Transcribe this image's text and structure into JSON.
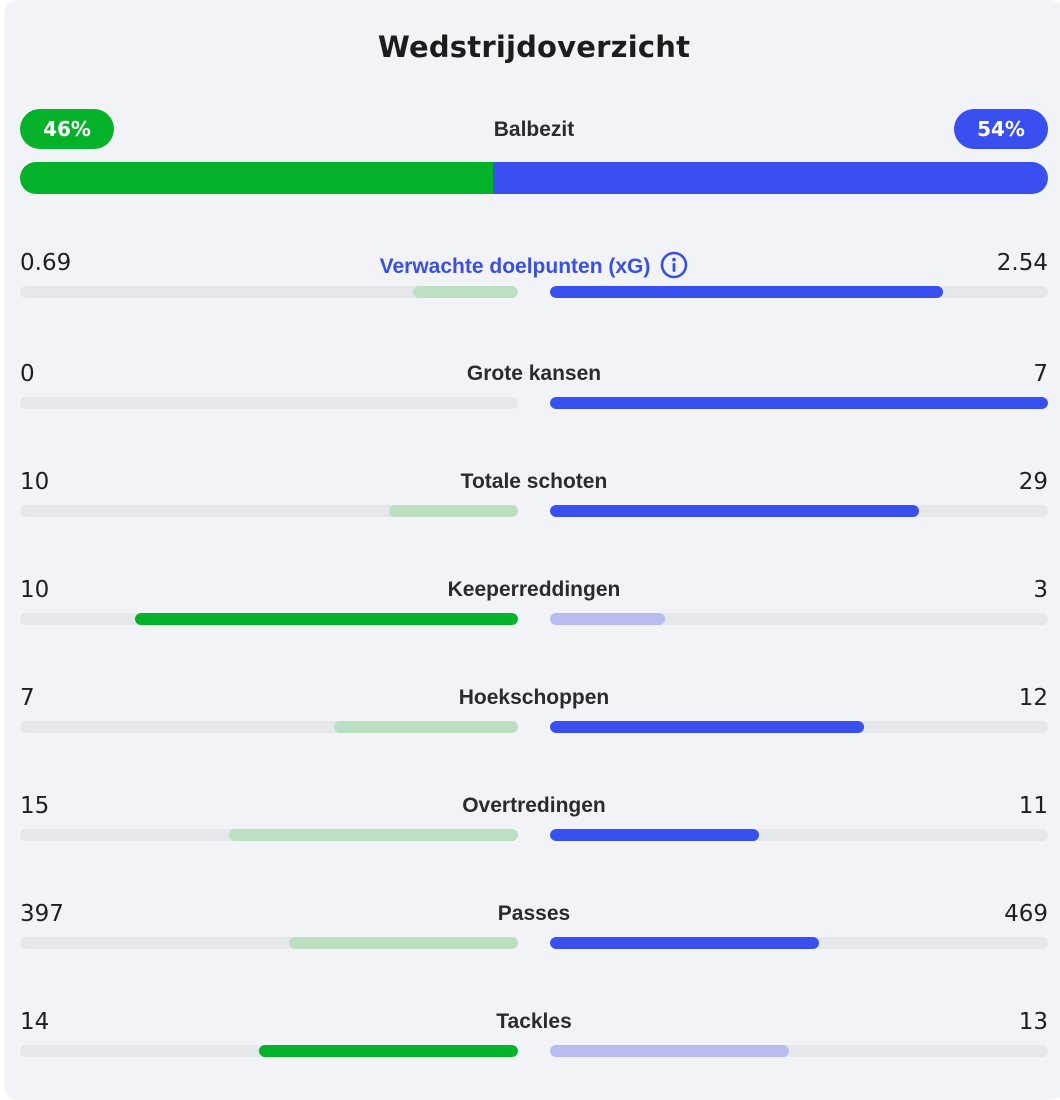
{
  "title": "Wedstrijdoverzicht",
  "colors": {
    "home": "#04b22a",
    "home_light": "#bcdfc4",
    "away": "#3a4ff0",
    "away_light": "#b8bff0",
    "track": "#e6e7ea"
  },
  "possession": {
    "label": "Balbezit",
    "home_label": "46%",
    "away_label": "54%",
    "home": 46,
    "away": 54
  },
  "stats": [
    {
      "label": "Verwachte doelpunten (xG)",
      "home": "0.69",
      "away": "2.54",
      "home_val": 0.69,
      "away_val": 2.54,
      "home_fraction": 0.21,
      "away_fraction": 0.79,
      "home_leads": false,
      "link": true,
      "icon": "info-icon"
    },
    {
      "label": "Grote kansen",
      "home": "0",
      "away": "7",
      "home_val": 0,
      "away_val": 7,
      "home_fraction": 0,
      "away_fraction": 1,
      "home_leads": false
    },
    {
      "label": "Totale schoten",
      "home": "10",
      "away": "29",
      "home_val": 10,
      "away_val": 29,
      "home_fraction": 0.26,
      "away_fraction": 0.74,
      "home_leads": false
    },
    {
      "label": "Keeperreddingen",
      "home": "10",
      "away": "3",
      "home_val": 10,
      "away_val": 3,
      "home_fraction": 0.77,
      "away_fraction": 0.23,
      "home_leads": true
    },
    {
      "label": "Hoekschoppen",
      "home": "7",
      "away": "12",
      "home_val": 7,
      "away_val": 12,
      "home_fraction": 0.37,
      "away_fraction": 0.63,
      "home_leads": false
    },
    {
      "label": "Overtredingen",
      "home": "15",
      "away": "11",
      "home_val": 15,
      "away_val": 11,
      "home_fraction": 0.58,
      "away_fraction": 0.42,
      "home_leads": false
    },
    {
      "label": "Passes",
      "home": "397",
      "away": "469",
      "home_val": 397,
      "away_val": 469,
      "home_fraction": 0.46,
      "away_fraction": 0.54,
      "home_leads": false
    },
    {
      "label": "Tackles",
      "home": "14",
      "away": "13",
      "home_val": 14,
      "away_val": 13,
      "home_fraction": 0.52,
      "away_fraction": 0.48,
      "home_leads": true
    }
  ]
}
